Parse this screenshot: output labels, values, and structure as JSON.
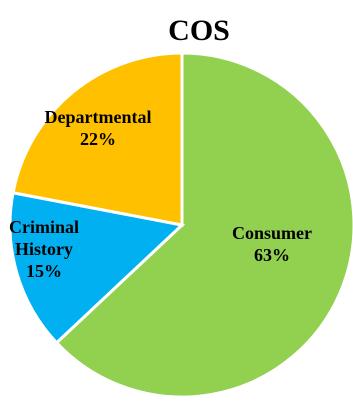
{
  "chart_data": {
    "type": "pie",
    "title": "COS",
    "slices": [
      {
        "name": "Consumer",
        "value": 63,
        "value_label": "63%",
        "color": "#92d050"
      },
      {
        "name": "Criminal History",
        "value": 15,
        "value_label": "15%",
        "color": "#00b0f0",
        "label_lines": [
          "Criminal",
          "History"
        ]
      },
      {
        "name": "Departmental",
        "value": 22,
        "value_label": "22%",
        "color": "#ffc000"
      }
    ],
    "start": "12 o'clock",
    "direction": "clockwise",
    "legend": "none",
    "slice_border_color": "#ffffff"
  }
}
